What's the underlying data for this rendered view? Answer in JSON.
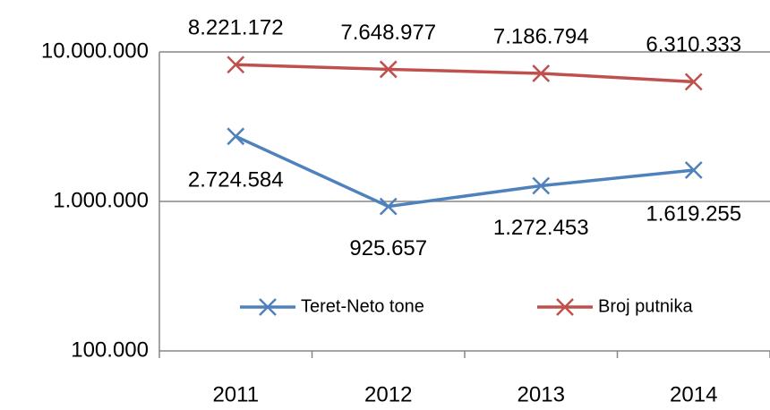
{
  "chart_data": {
    "type": "line",
    "categories": [
      "2011",
      "2012",
      "2013",
      "2014"
    ],
    "series": [
      {
        "name": "Teret-Neto tone",
        "color": "#4f81bd",
        "values": [
          2724584,
          925657,
          1272453,
          1619255
        ],
        "value_labels": [
          "2.724.584",
          "925.657",
          "1.272.453",
          "1.619.255"
        ]
      },
      {
        "name": "Broj putnika",
        "color": "#c0504d",
        "values": [
          8221172,
          7648977,
          7186794,
          6310333
        ],
        "value_labels": [
          "8.221.172",
          "7.648.977",
          "7.186.794",
          "6.310.333"
        ]
      }
    ],
    "ylim": [
      100000,
      10000000
    ],
    "yticks": [
      {
        "value": 100000,
        "label": "100.000"
      },
      {
        "value": 1000000,
        "label": "1.000.000"
      },
      {
        "value": 10000000,
        "label": "10.000.000"
      }
    ],
    "yscale": "log",
    "grid": true,
    "legend": "bottom"
  }
}
